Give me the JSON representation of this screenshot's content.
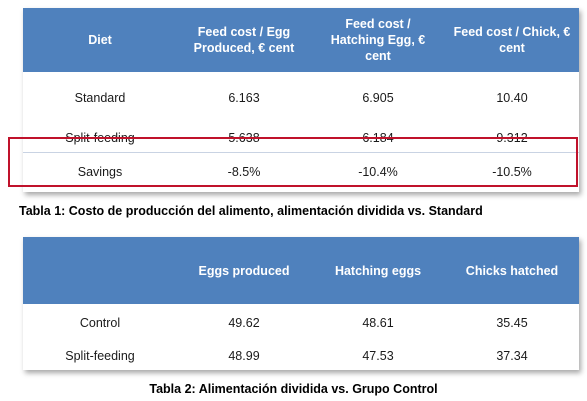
{
  "table1": {
    "headers": [
      "Diet",
      "Feed cost / Egg Produced, € cent",
      "Feed cost / Hatching Egg, € cent",
      "Feed cost / Chick, € cent"
    ],
    "rows": [
      [
        "Standard",
        "6.163",
        "6.905",
        "10.40"
      ],
      [
        "Split-feeding",
        "5.638",
        "6.184",
        "9.312"
      ],
      [
        "Savings",
        "-8.5%",
        "-10.4%",
        "-10.5%"
      ]
    ],
    "highlighted_row": "Savings",
    "highlight_color": "#c0122b",
    "header_color": "#4f81bd",
    "caption": "Tabla 1: Costo de producción del alimento, alimentación dividida vs. Standard"
  },
  "table2": {
    "headers": [
      "",
      "Eggs produced",
      "Hatching eggs",
      "Chicks hatched"
    ],
    "rows": [
      [
        "Control",
        "49.62",
        "48.61",
        "35.45"
      ],
      [
        "Split-feeding",
        "48.99",
        "47.53",
        "37.34"
      ]
    ],
    "header_color": "#4f81bd",
    "caption": "Tabla 2: Alimentación dividida vs. Grupo Control"
  }
}
